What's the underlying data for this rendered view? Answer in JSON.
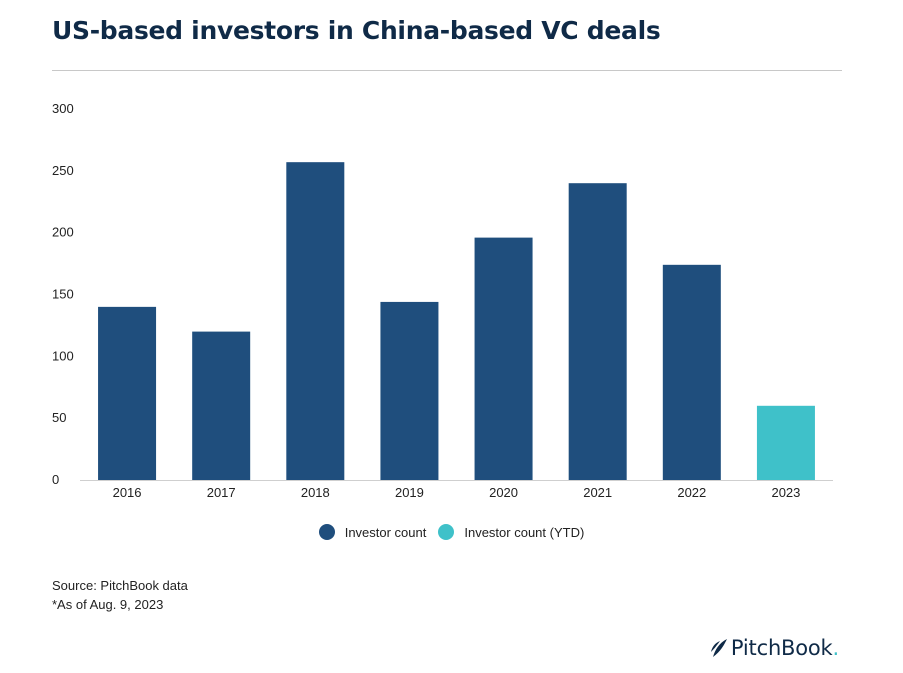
{
  "title": "US-based investors in China-based VC deals",
  "chart_data": {
    "type": "bar",
    "categories": [
      "2016",
      "2017",
      "2018",
      "2019",
      "2020",
      "2021",
      "2022",
      "2023"
    ],
    "series": [
      {
        "name": "Investor count",
        "values": [
          140,
          120,
          257,
          144,
          196,
          240,
          174,
          null
        ]
      },
      {
        "name": "Investor count (YTD)",
        "values": [
          null,
          null,
          null,
          null,
          null,
          null,
          null,
          60
        ]
      }
    ],
    "yticks": [
      "0",
      "50",
      "100",
      "150",
      "200",
      "250",
      "300"
    ],
    "ylim": [
      0,
      300
    ],
    "grid": false,
    "legend": "bottom-center",
    "colors": [
      "#1f4e7d",
      "#3fc1c9"
    ]
  },
  "legend": [
    {
      "label": "Investor count",
      "color": "#1f4e7d"
    },
    {
      "label": "Investor count (YTD)",
      "color": "#3fc1c9"
    }
  ],
  "source": {
    "line1": "Source: PitchBook data",
    "line2": "*As of Aug. 9, 2023"
  },
  "brand": {
    "name": "PitchBook",
    "dot": ".",
    "icon": "pitchbook-leaf-icon"
  }
}
